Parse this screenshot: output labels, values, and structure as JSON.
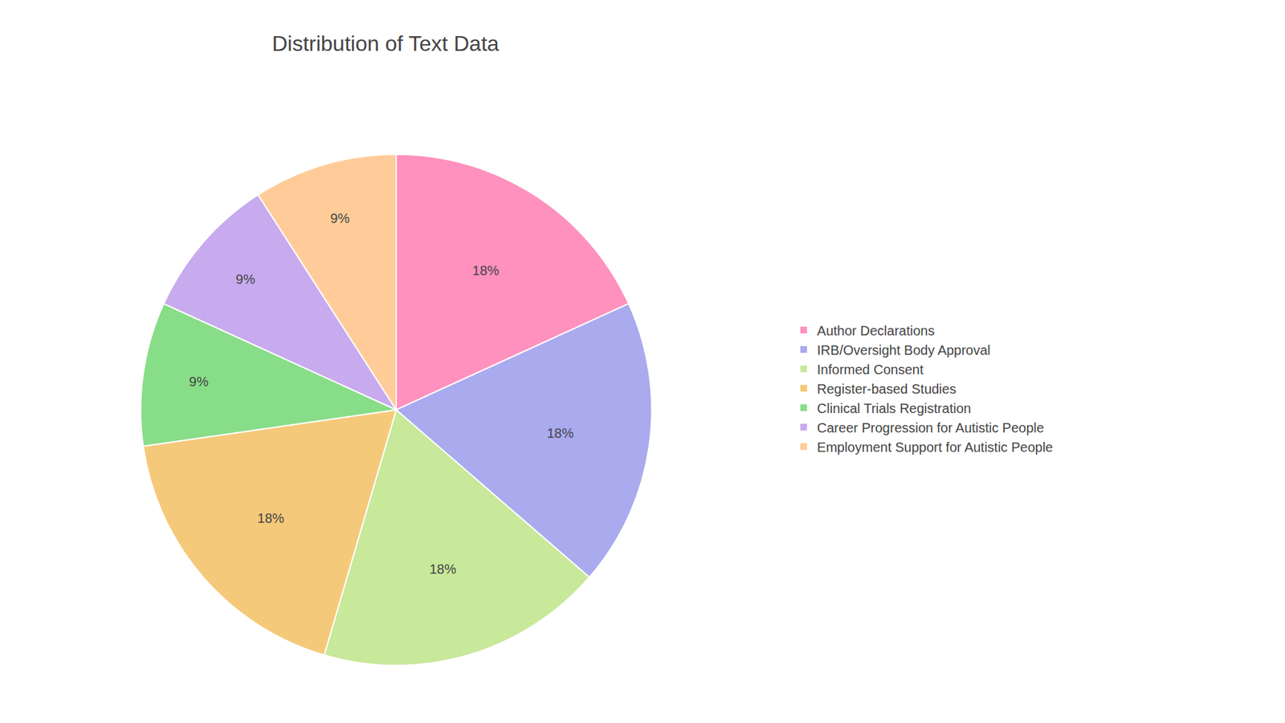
{
  "chart_data": {
    "type": "pie",
    "title": "Distribution of Text Data",
    "categories": [
      "Author Declarations",
      "IRB/Oversight Body Approval",
      "Informed Consent",
      "Register-based Studies",
      "Clinical Trials Registration",
      "Career Progression for Autistic People",
      "Employment Support for Autistic People"
    ],
    "values": [
      18,
      18,
      18,
      18,
      9,
      9,
      9
    ],
    "value_labels": [
      "18%",
      "18%",
      "18%",
      "18%",
      "9%",
      "9%",
      "9%"
    ],
    "colors": [
      "#FF91BE",
      "#AAAAEE",
      "#C8E89A",
      "#F5C97A",
      "#88DD88",
      "#C8AAEE",
      "#FFCC99"
    ],
    "data_labels": true,
    "legend": "right"
  }
}
